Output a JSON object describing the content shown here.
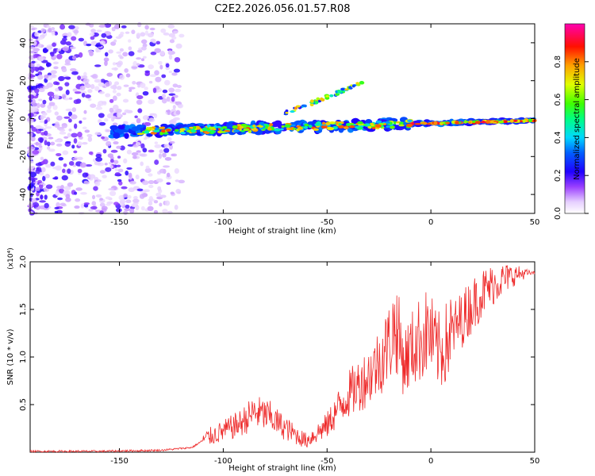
{
  "title": "C2E2.2026.056.01.57.R08",
  "chart_data": [
    {
      "type": "heatmap",
      "panel": "spectrogram",
      "xlabel": "Height of straight line (km)",
      "ylabel": "Frequency (Hz)",
      "xlim": [
        -193,
        50
      ],
      "ylim": [
        -50,
        50
      ],
      "xticks": [
        -150,
        -100,
        -50,
        0,
        50
      ],
      "xtick_labels": [
        "-150",
        "-100",
        "-50",
        "0",
        "50"
      ],
      "yticks": [
        -40,
        -20,
        0,
        20,
        40
      ],
      "ytick_labels": [
        "-40",
        "-20",
        "0",
        "20",
        "40"
      ],
      "colorbar": {
        "label": "Normalized spectral amplitude",
        "range": [
          0,
          1
        ],
        "ticks": [
          0,
          0.2,
          0.4,
          0.6,
          0.8
        ],
        "tick_labels": [
          "0.0",
          "0.2",
          "0.4",
          "0.6",
          "0.8"
        ],
        "colormap": [
          "#ffffff",
          "#e0c8ff",
          "#9a40ff",
          "#3a00e0",
          "#0000ff",
          "#00c0ff",
          "#00ffa0",
          "#40ff00",
          "#e0ff00",
          "#ffa000",
          "#ff2000",
          "#ff00a0"
        ]
      },
      "features": [
        {
          "name": "noise-band",
          "x_range": [
            -193,
            -120
          ],
          "freq_range": [
            -50,
            50
          ],
          "amplitude": 0.2
        },
        {
          "name": "main-track",
          "x_range": [
            -155,
            50
          ],
          "freq_start": -7,
          "freq_end": -1,
          "amplitude": 0.9
        },
        {
          "name": "upper-branch",
          "x_range": [
            -70,
            -30
          ],
          "freq_start": 3,
          "freq_end": 20,
          "amplitude": 0.6
        }
      ]
    },
    {
      "type": "line",
      "panel": "snr",
      "xlabel": "Height of straight line (km)",
      "ylabel": "SNR (10 * v/v)",
      "multiplier_label": "(x10⁴)",
      "xlim": [
        -193,
        50
      ],
      "ylim": [
        0,
        2.0
      ],
      "xticks": [
        -150,
        -100,
        -50,
        0,
        50
      ],
      "xtick_labels": [
        "-150",
        "-100",
        "-50",
        "0",
        "50"
      ],
      "yticks": [
        0.5,
        1.0,
        1.5,
        2.0
      ],
      "ytick_labels": [
        "0.5",
        "1.0",
        "1.5",
        "2.0"
      ],
      "color": "#ff2020",
      "series": [
        {
          "name": "SNR",
          "x": [
            -193,
            -160,
            -130,
            -115,
            -108,
            -100,
            -92,
            -85,
            -78,
            -72,
            -65,
            -60,
            -55,
            -50,
            -45,
            -40,
            -35,
            -30,
            -25,
            -20,
            -17,
            -13,
            -10,
            -7,
            -4,
            -1,
            2,
            5,
            10,
            15,
            20,
            25,
            30,
            35,
            40,
            45,
            50
          ],
          "y": [
            0.01,
            0.01,
            0.02,
            0.05,
            0.15,
            0.22,
            0.3,
            0.42,
            0.38,
            0.28,
            0.18,
            0.12,
            0.2,
            0.28,
            0.45,
            0.6,
            0.7,
            0.8,
            0.95,
            1.15,
            1.35,
            0.95,
            1.05,
            1.15,
            1.2,
            1.28,
            1.1,
            1.05,
            1.25,
            1.4,
            1.55,
            1.68,
            1.76,
            1.82,
            1.86,
            1.88,
            1.88
          ]
        }
      ]
    }
  ]
}
